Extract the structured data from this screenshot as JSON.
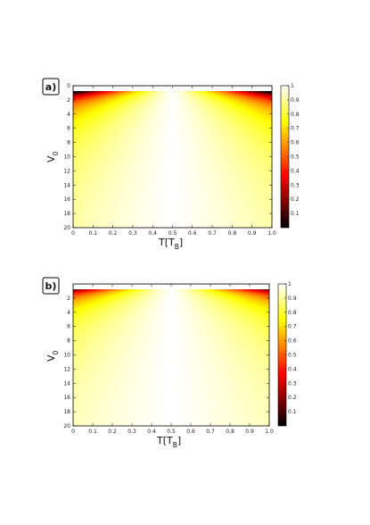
{
  "chart_data": [
    {
      "type": "heatmap",
      "panel_label": "a)",
      "xlabel": "T[T",
      "xlabel_sub": "B",
      "xlabel_close": "]",
      "ylabel": "V",
      "ylabel_sub": "0",
      "x_ticks": [
        "0",
        "0.1",
        "0.2",
        "0.3",
        "0.4",
        "0.5",
        "0.6",
        "0.7",
        "0.8",
        "0.9",
        "1.0"
      ],
      "y_ticks": [
        "0",
        "2",
        "4",
        "6",
        "8",
        "10",
        "12",
        "14",
        "16",
        "18",
        "20"
      ],
      "xlim": [
        0,
        1
      ],
      "ylim": [
        0,
        20
      ],
      "colorbar_ticks": [
        "0.1",
        "0.2",
        "0.3",
        "0.4",
        "0.5",
        "0.6",
        "0.7",
        "0.8",
        "0.9",
        "1"
      ],
      "colorbar_range": [
        0,
        1
      ],
      "colormap": "hot",
      "spread": 1.0
    },
    {
      "type": "heatmap",
      "panel_label": "b)",
      "xlabel": "T[T",
      "xlabel_sub": "B",
      "xlabel_close": "]",
      "ylabel": "V",
      "ylabel_sub": "0",
      "x_ticks": [
        "0",
        "0.1",
        "0.2",
        "0.3",
        "0.4",
        "0.5",
        "0.6",
        "0.7",
        "0.8",
        "0.9",
        "1.0"
      ],
      "y_ticks": [
        "2",
        "4",
        "6",
        "8",
        "10",
        "12",
        "14",
        "16",
        "18",
        "20"
      ],
      "xlim": [
        0,
        1
      ],
      "ylim": [
        0,
        20
      ],
      "colorbar_ticks": [
        "0.1",
        "0.2",
        "0.3",
        "0.4",
        "0.5",
        "0.6",
        "0.7",
        "0.8",
        "0.9",
        "1"
      ],
      "colorbar_range": [
        0,
        1
      ],
      "colormap": "hot",
      "spread": 1.35
    }
  ]
}
